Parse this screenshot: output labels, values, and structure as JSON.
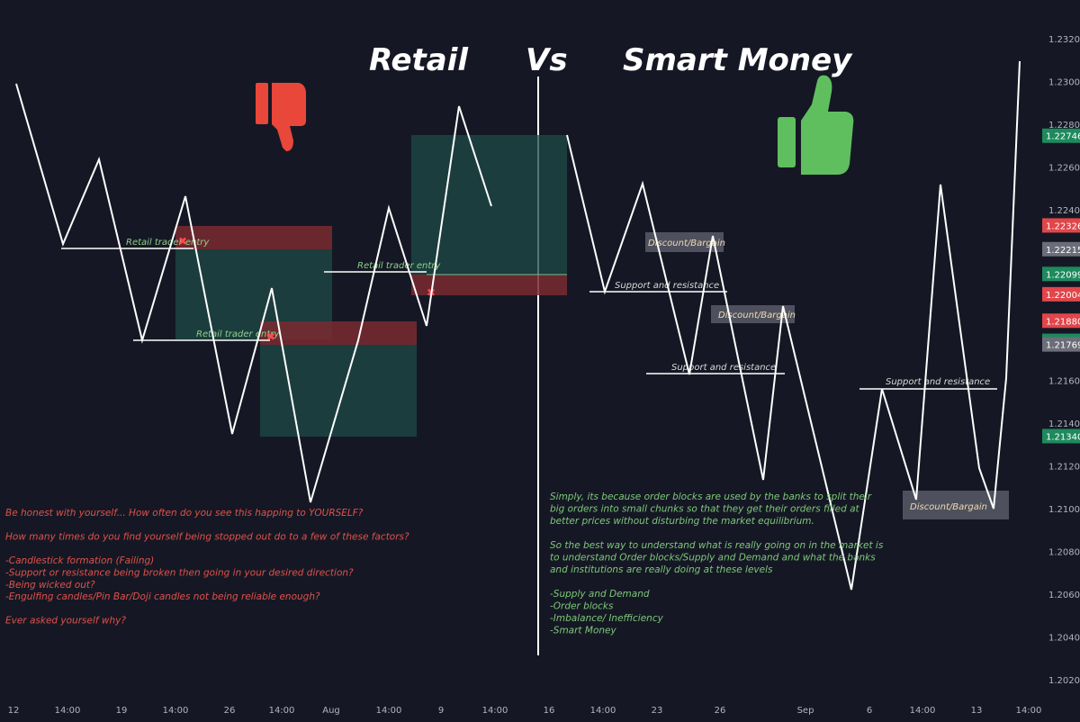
{
  "titles": {
    "left": "Retail",
    "middle": "Vs",
    "right": "Smart Money"
  },
  "colors": {
    "background": "#151824",
    "price_line": "#ffffff",
    "red_zone": "#7a2a30",
    "green_zone": "#1d4a45",
    "retail_text": "#e0514b",
    "smart_text": "#7ec77a",
    "thumbs_down": "#e8473a",
    "thumbs_up": "#5fbf5f",
    "label_green": "#8fd18a",
    "label_white": "#d8d8d8"
  },
  "icons": {
    "left": "thumbs-down-icon",
    "right": "thumbs-up-icon"
  },
  "chart_data": {
    "type": "line",
    "x_ticks": [
      "12",
      "14:00",
      "19",
      "14:00",
      "26",
      "14:00",
      "Aug",
      "14:00",
      "9",
      "14:00",
      "16",
      "14:00",
      "23",
      "26",
      "Sep",
      "6",
      "14:00",
      "13",
      "14:00"
    ],
    "y_ticks": [
      "1.23200",
      "1.23000",
      "1.22800",
      "1.22600",
      "1.22400",
      "1.22200",
      "1.22000",
      "1.21800",
      "1.21600",
      "1.21400",
      "1.21200",
      "1.21000",
      "1.20800",
      "1.20600",
      "1.20400",
      "1.20200"
    ],
    "ylim": [
      1.2015,
      1.2345
    ],
    "price_badges": [
      {
        "value": "1.22746",
        "color": "#1e8a5e"
      },
      {
        "value": "1.22326",
        "color": "#e0464a"
      },
      {
        "value": "1.22215",
        "color": "#6b6e78"
      },
      {
        "value": "1.22099",
        "color": "#1e8a5e"
      },
      {
        "value": "1.22004",
        "color": "#e0464a"
      },
      {
        "value": "1.21880",
        "color": "#e0464a"
      },
      {
        "value": "1.21786",
        "color": "#1e8a5e"
      },
      {
        "value": "1.21769",
        "color": "#6b6e78"
      },
      {
        "value": "1.21340",
        "color": "#1e8a5e"
      }
    ],
    "series": [
      {
        "values": [
          1.23,
          1.2215,
          1.2265,
          1.218,
          1.2245,
          1.216,
          1.2135,
          1.219,
          1.211,
          1.22,
          1.218,
          1.224,
          1.218,
          1.222,
          1.2285,
          1.2245
        ]
      },
      {
        "values": [
          1.2275,
          1.2205,
          1.2255,
          1.2185,
          1.2235,
          1.216,
          1.2225,
          1.2115,
          1.219,
          1.2065,
          1.2155,
          1.2105,
          1.2255,
          1.2105,
          1.231
        ]
      }
    ],
    "labels": {
      "retail_entry_1": "Retail trader entry",
      "retail_entry_2": "Retail trader entry",
      "retail_entry_3": "Retail trader entry",
      "sr_1": "Support and resistance",
      "sr_2": "Support and resistance",
      "sr_3": "Support and resistance",
      "discount_1": "Discount/Bargain",
      "discount_2": "Discount/Bargain",
      "discount_3": "Discount/Bargain",
      "fail_marker": "✖"
    }
  },
  "retail_notes": [
    "Be honest with yourself... How often do you see this happing to YOURSELF?",
    "",
    "How many times do you find yourself being stopped out do to a few of these factors?",
    "",
    "-Candlestick formation (Failing)",
    "-Support or resistance being broken then going in your desired direction?",
    "-Being wicked out?",
    "-Engulfing candles/Pin Bar/Doji candles not being reliable enough?",
    "",
    "Ever asked yourself why?"
  ],
  "smart_notes": [
    "Simply, its because order blocks are used by the banks to split their",
    "big orders into small chunks so that they get their orders filled at",
    "better prices without disturbing the market equilibrium.",
    "",
    "So the best way to understand what is really going on in the market is",
    "to understand Order blocks/Supply and Demand and what the banks",
    "and institutions are really doing at these levels",
    "",
    "-Supply and Demand",
    "-Order blocks",
    "-Imbalance/ Inefficiency",
    "-Smart Money"
  ]
}
